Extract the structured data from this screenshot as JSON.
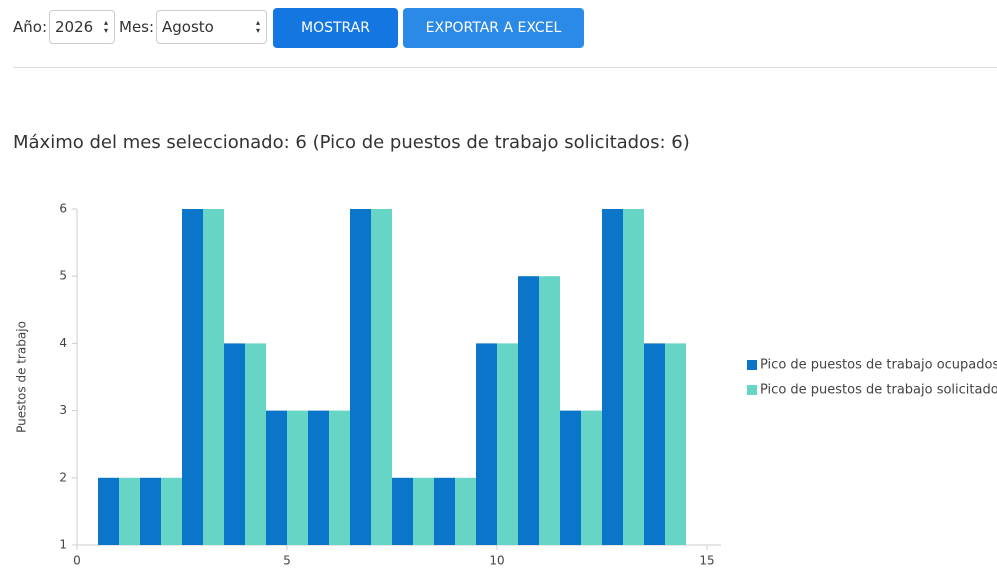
{
  "controls": {
    "year_label": "Año:",
    "year_value": "2026",
    "month_label": "Mes:",
    "month_value": "Agosto",
    "show_button": "MOSTRAR",
    "export_button": "EXPORTAR A EXCEL"
  },
  "heading": "Máximo del mes seleccionado: 6 (Pico de puestos de trabajo solicitados: 6)",
  "chart_data": {
    "type": "bar",
    "y_label": "Puestos de trabajo",
    "x": [
      1,
      2,
      3,
      4,
      5,
      6,
      7,
      8,
      9,
      10,
      11,
      12,
      13,
      14
    ],
    "series": [
      {
        "name": "Pico de puestos de trabajo ocupados",
        "color": "#0b75c9",
        "values": [
          2,
          2,
          6,
          4,
          3,
          3,
          6,
          2,
          2,
          4,
          5,
          3,
          6,
          4
        ]
      },
      {
        "name": "Pico de puestos de trabajo solicitados",
        "color": "#66d5c5",
        "values": [
          2,
          2,
          6,
          4,
          3,
          3,
          6,
          2,
          2,
          4,
          5,
          3,
          6,
          4
        ]
      }
    ],
    "xlim": [
      0,
      15
    ],
    "xticks": [
      0,
      5,
      10,
      15
    ],
    "ylim": [
      1,
      6
    ],
    "yticks": [
      1,
      2,
      3,
      4,
      5,
      6
    ],
    "legend": "right"
  }
}
